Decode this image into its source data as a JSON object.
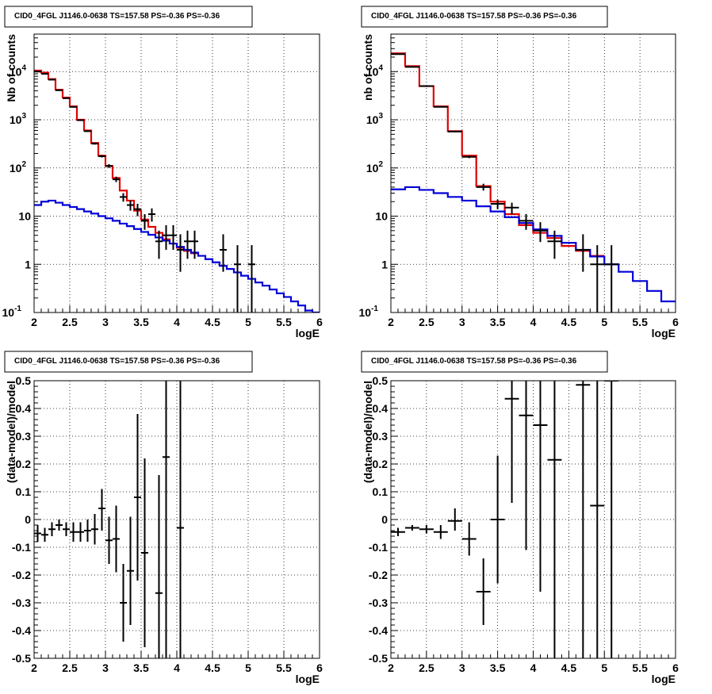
{
  "colors": {
    "total_model": "#e00000",
    "background_model": "#0000d8",
    "data": "#000000"
  },
  "chart_data": [
    {
      "type": "line",
      "panel": "top-left",
      "title": "CID0_4FGL J1146.0-0638 TS=157.58 PS=-0.36 PS=-0.36",
      "xlabel": "logE",
      "ylabel": "Nb of counts",
      "xlim": [
        2,
        6
      ],
      "ylim": [
        0.1,
        60000
      ],
      "log_y": true,
      "grid": true,
      "xticks": [
        "2",
        "2.5",
        "3",
        "3.5",
        "4",
        "4.5",
        "5",
        "5.5",
        "6"
      ],
      "yticks": [
        {
          "value": 0.1,
          "label": "10",
          "exp": "-1"
        },
        {
          "value": 1,
          "label": "1",
          "exp": ""
        },
        {
          "value": 10,
          "label": "10",
          "exp": ""
        },
        {
          "value": 100,
          "label": "10",
          "exp": "2"
        },
        {
          "value": 1000,
          "label": "10",
          "exp": "3"
        },
        {
          "value": 10000,
          "label": "10",
          "exp": "4"
        }
      ],
      "bin_width": 0.1,
      "series": [
        {
          "kind": "step",
          "color": "#e00000",
          "x": [
            2.0,
            2.1,
            2.2,
            2.3,
            2.4,
            2.5,
            2.6,
            2.7,
            2.8,
            2.9,
            3.0,
            3.1,
            3.2,
            3.3,
            3.4,
            3.5,
            3.6,
            3.7,
            3.8,
            3.9,
            4.0,
            4.1,
            4.2
          ],
          "y": [
            10500,
            9500,
            7000,
            4200,
            2900,
            1900,
            1000,
            600,
            330,
            180,
            110,
            62,
            34,
            21,
            13,
            8.5,
            6,
            4.5,
            3.3,
            2.7,
            2.2,
            1.9,
            1.7
          ]
        },
        {
          "kind": "step",
          "color": "#0000d8",
          "x": [
            2.0,
            2.1,
            2.2,
            2.3,
            2.4,
            2.5,
            2.6,
            2.7,
            2.8,
            2.9,
            3.0,
            3.1,
            3.2,
            3.3,
            3.4,
            3.5,
            3.6,
            3.7,
            3.8,
            3.9,
            4.0,
            4.1,
            4.2,
            4.3,
            4.4,
            4.5,
            4.6,
            4.7,
            4.8,
            4.9,
            5.0,
            5.1,
            5.2,
            5.3,
            5.4,
            5.5,
            5.6,
            5.7,
            5.8,
            5.9
          ],
          "y": [
            17,
            20,
            21,
            19,
            17,
            15.5,
            14,
            12.5,
            11.3,
            10,
            9,
            8,
            7,
            6.2,
            5.4,
            4.7,
            4.1,
            3.6,
            3.1,
            2.7,
            2.3,
            2.0,
            1.75,
            1.5,
            1.28,
            1.1,
            0.93,
            0.8,
            0.68,
            0.58,
            0.5,
            0.42,
            0.36,
            0.3,
            0.25,
            0.21,
            0.17,
            0.14,
            0.11,
            0.1
          ]
        },
        {
          "kind": "points",
          "x": [
            2.05,
            2.15,
            2.25,
            2.35,
            2.45,
            2.55,
            2.65,
            2.75,
            2.85,
            2.95,
            3.05,
            3.15,
            3.25,
            3.35,
            3.45,
            3.55,
            3.65,
            3.75,
            3.85,
            3.95,
            4.05,
            4.15,
            4.25,
            4.65,
            4.85,
            5.05
          ],
          "y": [
            10000,
            9000,
            6800,
            4100,
            2800,
            1850,
            980,
            580,
            320,
            175,
            110,
            58,
            25,
            17,
            14,
            8,
            11,
            3,
            4,
            4,
            2,
            3,
            3,
            2,
            1,
            1
          ],
          "lo": [
            9900,
            8900,
            6700,
            4000,
            2750,
            1800,
            950,
            560,
            305,
            165,
            100,
            51,
            20,
            13,
            10,
            5.2,
            7.7,
            1.3,
            2,
            2,
            0.7,
            1.3,
            1.3,
            0.7,
            0.1,
            0.1
          ],
          "hi": [
            10100,
            9100,
            6900,
            4200,
            2850,
            1900,
            1010,
            600,
            335,
            185,
            120,
            66,
            30,
            21,
            18,
            11,
            14.5,
            5,
            6.5,
            6.5,
            4.2,
            5,
            5,
            4.2,
            2.5,
            2.5
          ]
        }
      ]
    },
    {
      "type": "line",
      "panel": "top-right",
      "title": "CID0_4FGL J1146.0-0638 TS=157.58 PS=-0.36 PS=-0.36",
      "xlabel": "logE",
      "ylabel": "nb of counts",
      "xlim": [
        2,
        6
      ],
      "ylim": [
        0.1,
        60000
      ],
      "log_y": true,
      "grid": true,
      "xticks": [
        "2",
        "2.5",
        "3",
        "3.5",
        "4",
        "4.5",
        "5",
        "5.5",
        "6"
      ],
      "yticks": [
        {
          "value": 0.1,
          "label": "10",
          "exp": "-1"
        },
        {
          "value": 1,
          "label": "1",
          "exp": ""
        },
        {
          "value": 10,
          "label": "10",
          "exp": ""
        },
        {
          "value": 100,
          "label": "10",
          "exp": "2"
        },
        {
          "value": 1000,
          "label": "10",
          "exp": "3"
        },
        {
          "value": 10000,
          "label": "10",
          "exp": "4"
        }
      ],
      "bin_width": 0.2,
      "series": [
        {
          "kind": "step",
          "color": "#e00000",
          "x": [
            2.0,
            2.2,
            2.4,
            2.6,
            2.8,
            3.0,
            3.2,
            3.4,
            3.6,
            3.8,
            4.0,
            4.2,
            4.4,
            4.6,
            4.8
          ],
          "y": [
            24000,
            13000,
            5000,
            1900,
            580,
            180,
            42,
            20,
            11,
            6.5,
            4.5,
            3.5,
            2.4,
            1.9,
            1.5
          ]
        },
        {
          "kind": "step",
          "color": "#0000d8",
          "x": [
            2.0,
            2.2,
            2.4,
            2.6,
            2.8,
            3.0,
            3.2,
            3.4,
            3.6,
            3.8,
            4.0,
            4.2,
            4.4,
            4.6,
            4.8,
            5.0,
            5.2,
            5.4,
            5.6,
            5.8
          ],
          "y": [
            36,
            40,
            35,
            30,
            25,
            21,
            16,
            12.5,
            9.5,
            7.2,
            5.3,
            3.9,
            2.8,
            2.0,
            1.45,
            1.0,
            0.7,
            0.45,
            0.28,
            0.17
          ]
        },
        {
          "kind": "points",
          "x": [
            2.1,
            2.3,
            2.5,
            2.7,
            2.9,
            3.1,
            3.3,
            3.5,
            3.7,
            3.9,
            4.1,
            4.3,
            4.7,
            4.9,
            5.1
          ],
          "y": [
            23000,
            12500,
            5000,
            1850,
            570,
            170,
            40,
            18,
            15,
            8,
            5,
            3,
            2,
            1,
            1
          ],
          "lo": [
            22850,
            12400,
            4930,
            1810,
            550,
            160,
            34,
            14,
            11,
            5.2,
            2.9,
            1.3,
            0.7,
            0.1,
            0.1
          ],
          "hi": [
            23150,
            12600,
            5070,
            1890,
            590,
            180,
            47,
            22,
            19,
            11,
            7.5,
            5,
            4.2,
            2.5,
            2.5
          ]
        }
      ]
    },
    {
      "type": "scatter",
      "panel": "bottom-left",
      "title": "CID0_4FGL J1146.0-0638 TS=157.58 PS=-0.36 PS=-0.36",
      "xlabel": "logE",
      "ylabel": "(data-model)/model",
      "xlim": [
        2,
        6
      ],
      "ylim": [
        -0.5,
        0.5
      ],
      "log_y": false,
      "grid": true,
      "xticks": [
        "2",
        "2.5",
        "3",
        "3.5",
        "4",
        "4.5",
        "5",
        "5.5",
        "6"
      ],
      "yticks": [
        {
          "value": -0.5,
          "label": "-0.5",
          "exp": ""
        },
        {
          "value": -0.4,
          "label": "-0.4",
          "exp": ""
        },
        {
          "value": -0.3,
          "label": "-0.3",
          "exp": ""
        },
        {
          "value": -0.2,
          "label": "-0.2",
          "exp": ""
        },
        {
          "value": -0.1,
          "label": "-0.1",
          "exp": ""
        },
        {
          "value": 0,
          "label": "0",
          "exp": ""
        },
        {
          "value": 0.1,
          "label": "0.1",
          "exp": ""
        },
        {
          "value": 0.2,
          "label": "0.2",
          "exp": ""
        },
        {
          "value": 0.3,
          "label": "0.3",
          "exp": ""
        },
        {
          "value": 0.4,
          "label": "0.4",
          "exp": ""
        },
        {
          "value": 0.5,
          "label": "0.5",
          "exp": ""
        }
      ],
      "bin_width": 0.1,
      "series": [
        {
          "kind": "points",
          "x": [
            2.05,
            2.15,
            2.25,
            2.35,
            2.45,
            2.55,
            2.65,
            2.75,
            2.85,
            2.95,
            3.05,
            3.15,
            3.25,
            3.35,
            3.45,
            3.55,
            3.65,
            3.75,
            3.85,
            3.95,
            4.05
          ],
          "y": [
            -0.05,
            -0.055,
            -0.035,
            -0.02,
            -0.035,
            -0.045,
            -0.045,
            -0.04,
            -0.035,
            0.04,
            -0.075,
            -0.07,
            -0.3,
            -0.185,
            0.08,
            -0.12,
            null,
            -0.265,
            0.225,
            null,
            -0.03
          ],
          "lo": [
            -0.08,
            -0.08,
            -0.06,
            -0.04,
            -0.06,
            -0.08,
            -0.08,
            -0.08,
            -0.09,
            -0.04,
            -0.16,
            -0.19,
            -0.44,
            -0.38,
            -0.22,
            -0.46,
            null,
            -0.6,
            -0.6,
            null,
            -0.6
          ],
          "hi": [
            -0.02,
            -0.03,
            -0.01,
            0.0,
            -0.01,
            -0.01,
            -0.01,
            0.0,
            0.02,
            0.11,
            0.01,
            0.05,
            -0.16,
            0.01,
            0.38,
            0.22,
            null,
            0.16,
            0.6,
            null,
            0.6
          ]
        }
      ]
    },
    {
      "type": "scatter",
      "panel": "bottom-right",
      "title": "CID0_4FGL J1146.0-0638 TS=157.58 PS=-0.36 PS=-0.36",
      "xlabel": "logE",
      "ylabel": "(data-model)/model",
      "xlim": [
        2,
        6
      ],
      "ylim": [
        -0.5,
        0.5
      ],
      "log_y": false,
      "grid": true,
      "xticks": [
        "2",
        "2.5",
        "3",
        "3.5",
        "4",
        "4.5",
        "5",
        "5.5",
        "6"
      ],
      "yticks": [
        {
          "value": -0.5,
          "label": "-0.5",
          "exp": ""
        },
        {
          "value": -0.4,
          "label": "-0.4",
          "exp": ""
        },
        {
          "value": -0.3,
          "label": "-0.3",
          "exp": ""
        },
        {
          "value": -0.2,
          "label": "-0.2",
          "exp": ""
        },
        {
          "value": -0.1,
          "label": "-0.1",
          "exp": ""
        },
        {
          "value": 0,
          "label": "0",
          "exp": ""
        },
        {
          "value": 0.1,
          "label": "0.1",
          "exp": ""
        },
        {
          "value": 0.2,
          "label": "0.2",
          "exp": ""
        },
        {
          "value": 0.3,
          "label": "0.3",
          "exp": ""
        },
        {
          "value": 0.4,
          "label": "0.4",
          "exp": ""
        },
        {
          "value": 0.5,
          "label": "0.5",
          "exp": ""
        }
      ],
      "bin_width": 0.2,
      "series": [
        {
          "kind": "points",
          "x": [
            2.1,
            2.3,
            2.5,
            2.7,
            2.9,
            3.1,
            3.3,
            3.5,
            3.7,
            3.9,
            4.1,
            4.3,
            4.7,
            4.9,
            5.1
          ],
          "y": [
            -0.045,
            -0.03,
            -0.035,
            -0.045,
            -0.005,
            -0.07,
            -0.26,
            0.0,
            0.435,
            0.375,
            0.34,
            0.215,
            0.485,
            0.05,
            0.5
          ],
          "lo": [
            -0.06,
            -0.04,
            -0.05,
            -0.07,
            -0.04,
            -0.13,
            -0.38,
            -0.23,
            0.06,
            -0.11,
            -0.26,
            -0.6,
            -0.6,
            -0.6,
            -0.6
          ],
          "hi": [
            -0.03,
            -0.02,
            -0.02,
            -0.02,
            0.04,
            -0.01,
            -0.14,
            0.23,
            0.6,
            0.6,
            0.6,
            0.6,
            0.6,
            0.6,
            0.6
          ]
        }
      ]
    }
  ]
}
